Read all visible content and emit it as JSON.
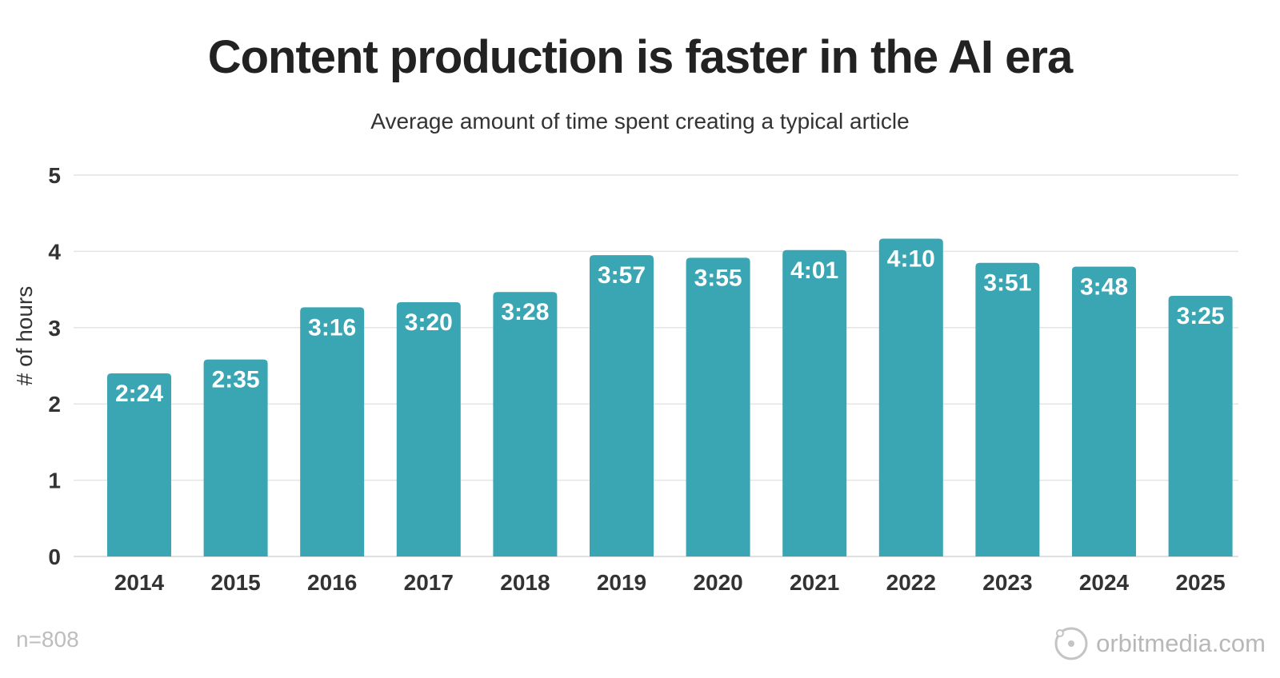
{
  "title": "Content production is faster in the AI era",
  "subtitle": "Average amount of time spent creating a typical article",
  "footnote": "n=808",
  "brand": {
    "text": "orbitmedia.com",
    "icon": "orbit-logo-icon",
    "color": "#b8b8b8"
  },
  "chart_data": {
    "type": "bar",
    "title": "Content production is faster in the AI era",
    "subtitle": "Average amount of time spent creating a typical article",
    "xlabel": "",
    "ylabel": "# of hours",
    "ylim": [
      0,
      5
    ],
    "yticks": [
      0,
      1,
      2,
      3,
      4,
      5
    ],
    "grid": true,
    "bar_color": "#3aa6b3",
    "categories": [
      "2014",
      "2015",
      "2016",
      "2017",
      "2018",
      "2019",
      "2020",
      "2021",
      "2022",
      "2023",
      "2024",
      "2025"
    ],
    "values": [
      2.4,
      2.583,
      3.267,
      3.333,
      3.467,
      3.95,
      3.917,
      4.017,
      4.167,
      3.85,
      3.8,
      3.417
    ],
    "labels": [
      "2:24",
      "2:35",
      "3:16",
      "3:20",
      "3:28",
      "3:57",
      "3:55",
      "4:01",
      "4:10",
      "3:51",
      "3:48",
      "3:25"
    ]
  }
}
